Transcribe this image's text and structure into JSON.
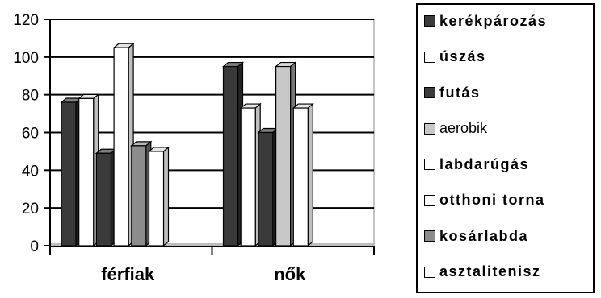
{
  "chart_data": {
    "type": "bar",
    "categories": [
      "férfiak",
      "nők"
    ],
    "ylim": [
      0,
      120
    ],
    "yticks": [
      0,
      20,
      40,
      60,
      80,
      100,
      120
    ],
    "grid": true,
    "legend_position": "right",
    "series": [
      {
        "name": "kerékpározás",
        "color": "#3a3a3a",
        "values": [
          76,
          95
        ]
      },
      {
        "name": "úszás",
        "color": "#ffffff",
        "values": [
          78,
          73
        ]
      },
      {
        "name": "futás",
        "color": "#3a3a3a",
        "values": [
          49,
          60
        ]
      },
      {
        "name": "aerobik",
        "color": "#c8c8c8",
        "values": [
          null,
          95
        ]
      },
      {
        "name": "labdarúgás",
        "color": "#ffffff",
        "values": [
          105,
          null
        ]
      },
      {
        "name": "otthoni torna",
        "color": "#ffffff",
        "values": [
          null,
          73
        ]
      },
      {
        "name": "kosárlabda",
        "color": "#8c8c8c",
        "values": [
          53,
          null
        ]
      },
      {
        "name": "asztalitenisz",
        "color": "#ffffff",
        "values": [
          50,
          null
        ]
      }
    ]
  }
}
